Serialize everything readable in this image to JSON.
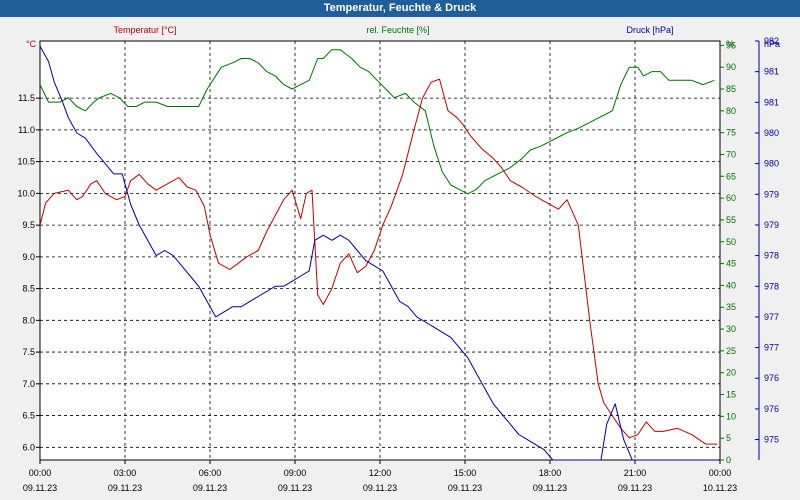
{
  "window_title": "Temperatur, Feuchte & Druck",
  "colors": {
    "temp": "#c00000",
    "hum": "#007000",
    "press": "#0000a0",
    "title_bar": "#1f5e99",
    "grid": "#000000"
  },
  "chart_data": {
    "type": "line",
    "title": "Temperatur, Feuchte & Druck",
    "grid": true,
    "x_ticks": [
      {
        "time": "00:00",
        "date": "09.11.23"
      },
      {
        "time": "03:00",
        "date": "09.11.23"
      },
      {
        "time": "06:00",
        "date": "09.11.23"
      },
      {
        "time": "09:00",
        "date": "09.11.23"
      },
      {
        "time": "12:00",
        "date": "09.11.23"
      },
      {
        "time": "15:00",
        "date": "09.11.23"
      },
      {
        "time": "18:00",
        "date": "09.11.23"
      },
      {
        "time": "21:00",
        "date": "09.11.23"
      },
      {
        "time": "00:00",
        "date": "10.11.23"
      }
    ],
    "axes": {
      "temp": {
        "label": "Temperatur [°C]",
        "unit": "°C",
        "range": [
          5.8,
          12.4
        ],
        "ticks": [
          6.0,
          6.5,
          7.0,
          7.5,
          8.0,
          8.5,
          9.0,
          9.5,
          10.0,
          10.5,
          11.0,
          11.5
        ]
      },
      "hum": {
        "label": "rel. Feuchte [%]",
        "unit": "%",
        "range": [
          0,
          96
        ],
        "ticks": [
          0,
          5,
          10,
          15,
          20,
          25,
          30,
          35,
          40,
          45,
          50,
          55,
          60,
          65,
          70,
          75,
          80,
          85,
          90,
          95
        ],
        "unit_tick": "%"
      },
      "press": {
        "label": "Druck [hPa]",
        "unit": "hPa",
        "range": [
          974.6,
          982.8
        ],
        "tick_labels": [
          "975",
          "976",
          "976",
          "977",
          "977",
          "978",
          "978",
          "979",
          "979",
          "980",
          "980",
          "981",
          "981",
          "982"
        ],
        "tick_values": [
          975.0,
          975.6,
          976.2,
          976.8,
          977.4,
          978.0,
          978.6,
          979.2,
          979.8,
          980.4,
          981.0,
          981.6,
          982.2,
          982.8
        ]
      }
    },
    "series": [
      {
        "name": "Temperatur [°C]",
        "axis": "temp",
        "hours": [
          0,
          0.2,
          0.5,
          1.0,
          1.3,
          1.5,
          1.8,
          2.0,
          2.3,
          2.7,
          3.0,
          3.2,
          3.5,
          3.8,
          4.1,
          4.5,
          4.9,
          5.2,
          5.5,
          5.8,
          6.0,
          6.3,
          6.7,
          7.0,
          7.3,
          7.7,
          8.0,
          8.3,
          8.6,
          8.9,
          9.2,
          9.4,
          9.6,
          9.8,
          10.0,
          10.3,
          10.6,
          10.9,
          11.2,
          11.5,
          11.8,
          12.1,
          12.4,
          12.8,
          13.2,
          13.5,
          13.8,
          14.1,
          14.4,
          14.7,
          14.9,
          15.2,
          15.6,
          16.0,
          16.3,
          16.6,
          17.0,
          17.5,
          17.9,
          18.3,
          18.6,
          19.0,
          19.4,
          19.7,
          19.9,
          20.2,
          20.5,
          20.8,
          21.1,
          21.4,
          21.7,
          22.0,
          22.5,
          23.0,
          23.5,
          23.9
        ],
        "values": [
          9.5,
          9.85,
          10.0,
          10.05,
          9.9,
          9.95,
          10.15,
          10.2,
          10.0,
          9.9,
          9.95,
          10.2,
          10.3,
          10.15,
          10.05,
          10.15,
          10.25,
          10.1,
          10.05,
          9.8,
          9.35,
          8.9,
          8.8,
          8.9,
          9.0,
          9.1,
          9.4,
          9.65,
          9.9,
          10.05,
          9.6,
          10.0,
          10.05,
          8.4,
          8.25,
          8.5,
          8.9,
          9.05,
          8.75,
          8.85,
          9.1,
          9.5,
          9.8,
          10.3,
          11.0,
          11.5,
          11.75,
          11.8,
          11.3,
          11.2,
          11.1,
          10.9,
          10.7,
          10.55,
          10.4,
          10.2,
          10.1,
          9.95,
          9.85,
          9.75,
          9.9,
          9.5,
          8.0,
          7.0,
          6.7,
          6.5,
          6.3,
          6.15,
          6.2,
          6.4,
          6.25,
          6.25,
          6.3,
          6.2,
          6.05,
          6.05
        ]
      },
      {
        "name": "rel. Feuchte [%]",
        "axis": "hum",
        "hours": [
          0,
          0.3,
          0.7,
          1.0,
          1.3,
          1.6,
          1.9,
          2.1,
          2.5,
          2.8,
          3.1,
          3.4,
          3.7,
          4.1,
          4.5,
          4.9,
          5.2,
          5.6,
          5.9,
          6.1,
          6.4,
          6.8,
          7.1,
          7.4,
          7.7,
          8.0,
          8.3,
          8.6,
          8.9,
          9.2,
          9.5,
          9.8,
          10.0,
          10.3,
          10.6,
          10.8,
          11.0,
          11.3,
          11.6,
          11.9,
          12.2,
          12.5,
          12.9,
          13.2,
          13.6,
          13.9,
          14.2,
          14.5,
          14.8,
          15.1,
          15.4,
          15.7,
          16.0,
          16.3,
          16.6,
          17.0,
          17.3,
          17.7,
          18.0,
          18.3,
          18.6,
          19.0,
          19.3,
          19.6,
          19.9,
          20.2,
          20.5,
          20.8,
          21.1,
          21.3,
          21.6,
          21.9,
          22.2,
          22.6,
          23.0,
          23.4,
          23.8
        ],
        "values": [
          86,
          82,
          82,
          83,
          81,
          80,
          82,
          83,
          84,
          83,
          81,
          81,
          82,
          82,
          81,
          81,
          81,
          81,
          85,
          87,
          90,
          91,
          92,
          92,
          91,
          89,
          88,
          86,
          85,
          86,
          87,
          92,
          92,
          94,
          94,
          93,
          92,
          90,
          89,
          87,
          85,
          83,
          84,
          82,
          80,
          72,
          66,
          63,
          62,
          61,
          62,
          64,
          65,
          66,
          67,
          69,
          71,
          72,
          73,
          74,
          75,
          76,
          77,
          78,
          79,
          80,
          86,
          90,
          90,
          88,
          89,
          89,
          87,
          87,
          87,
          86,
          87
        ]
      },
      {
        "name": "Druck [hPa]",
        "axis": "press",
        "hours": [
          0,
          0.3,
          0.5,
          0.8,
          1.0,
          1.3,
          1.6,
          2.0,
          2.3,
          2.6,
          2.9,
          3.2,
          3.5,
          3.8,
          4.1,
          4.4,
          4.7,
          5.0,
          5.3,
          5.6,
          5.9,
          6.2,
          6.5,
          6.8,
          7.1,
          7.4,
          7.7,
          8.0,
          8.3,
          8.6,
          8.9,
          9.2,
          9.5,
          9.7,
          10.0,
          10.3,
          10.6,
          10.9,
          11.2,
          11.5,
          11.8,
          12.1,
          12.4,
          12.7,
          13.0,
          13.3,
          13.6,
          13.9,
          14.2,
          14.5,
          14.8,
          15.1,
          15.4,
          15.7,
          16.0,
          16.3,
          16.6,
          16.9,
          17.2,
          17.5,
          17.8,
          18.1,
          18.4,
          18.7,
          19.0,
          19.3,
          19.6,
          19.8,
          20.0,
          20.3,
          20.6,
          20.9,
          21.2,
          21.5,
          21.8,
          22.1,
          22.4,
          22.7,
          23.0,
          23.3,
          23.6,
          23.9
        ],
        "values": [
          982.7,
          982.4,
          982.0,
          981.6,
          981.3,
          981.0,
          980.9,
          980.6,
          980.4,
          980.2,
          980.2,
          979.6,
          979.2,
          978.9,
          978.6,
          978.7,
          978.6,
          978.4,
          978.2,
          978.0,
          977.7,
          977.4,
          977.5,
          977.6,
          977.6,
          977.7,
          977.8,
          977.9,
          978.0,
          978.0,
          978.1,
          978.2,
          978.3,
          978.9,
          979.0,
          978.9,
          979.0,
          978.9,
          978.7,
          978.5,
          978.4,
          978.3,
          978.0,
          977.7,
          977.6,
          977.4,
          977.3,
          977.2,
          977.1,
          977.0,
          976.8,
          976.6,
          976.3,
          976.0,
          975.7,
          975.5,
          975.3,
          975.1,
          975.0,
          974.9,
          974.8,
          974.5,
          974.3,
          974.1,
          974.0,
          973.9,
          973.6,
          973.4,
          975.3,
          975.7,
          975.0,
          974.4,
          974.5,
          974.3,
          974.3,
          974.1,
          974.2,
          974.4,
          974.4,
          974.2,
          974.0,
          973.8
        ]
      }
    ]
  }
}
